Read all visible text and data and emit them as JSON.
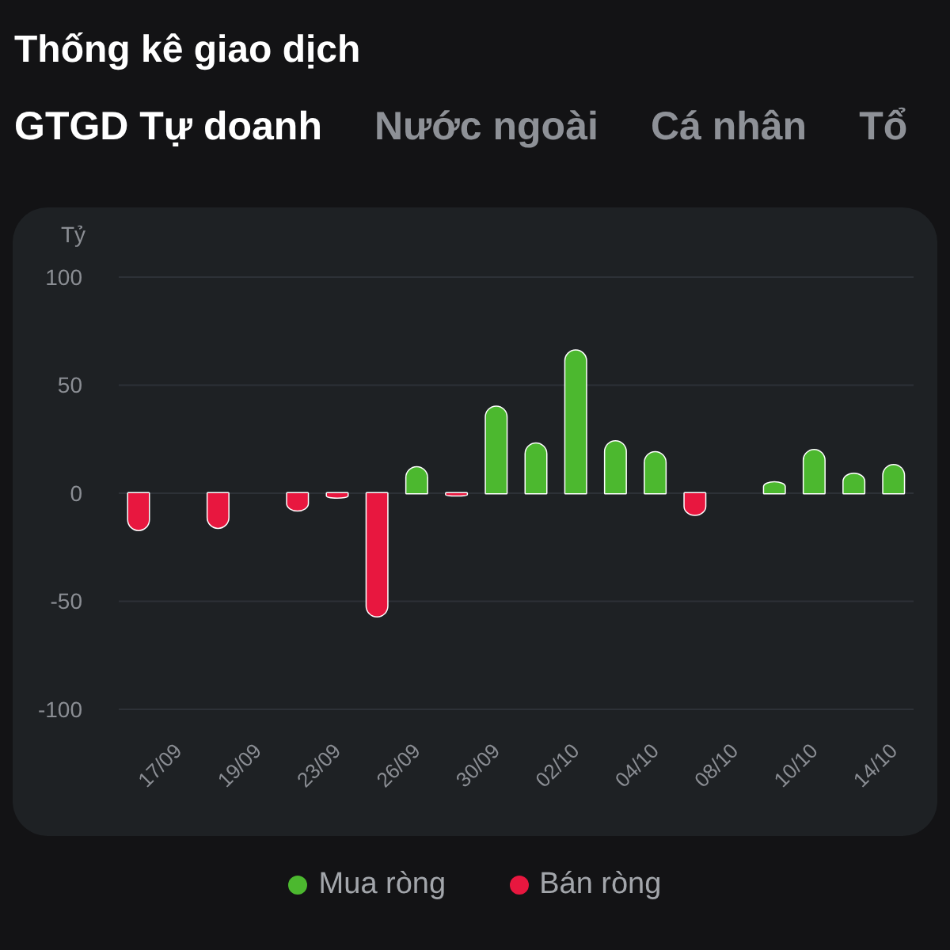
{
  "chart_data": {
    "type": "bar",
    "title": "Thống kê giao dịch",
    "subtitle": "GTGD Tự doanh",
    "annotations": [
      "Nước ngoài",
      "Cá nhân",
      "Tổ"
    ],
    "ylabel": "Tỷ",
    "categories": [
      null,
      "17/09",
      null,
      "19/09",
      null,
      "23/09",
      null,
      "26/09",
      null,
      "30/09",
      null,
      "02/10",
      null,
      "04/10",
      null,
      "08/10",
      null,
      "10/10",
      null,
      "14/10"
    ],
    "series": [
      {
        "name": "Mua ròng",
        "color": "#4cb82f",
        "values": [
          null,
          null,
          null,
          null,
          null,
          null,
          null,
          12,
          null,
          40,
          23,
          66,
          24,
          19,
          null,
          null,
          5,
          20,
          9,
          13
        ]
      },
      {
        "name": "Bán ròng",
        "color": "#e8173f",
        "values": [
          -17,
          null,
          -16,
          null,
          -8,
          -2,
          -57,
          null,
          -1,
          null,
          null,
          null,
          null,
          null,
          -10,
          null,
          null,
          null,
          null,
          null
        ]
      }
    ],
    "stacked": true,
    "ylim": [
      -100,
      100
    ],
    "yticks": [
      -100,
      -50,
      0,
      50,
      100
    ],
    "grid": "y",
    "legend": "bottom"
  }
}
